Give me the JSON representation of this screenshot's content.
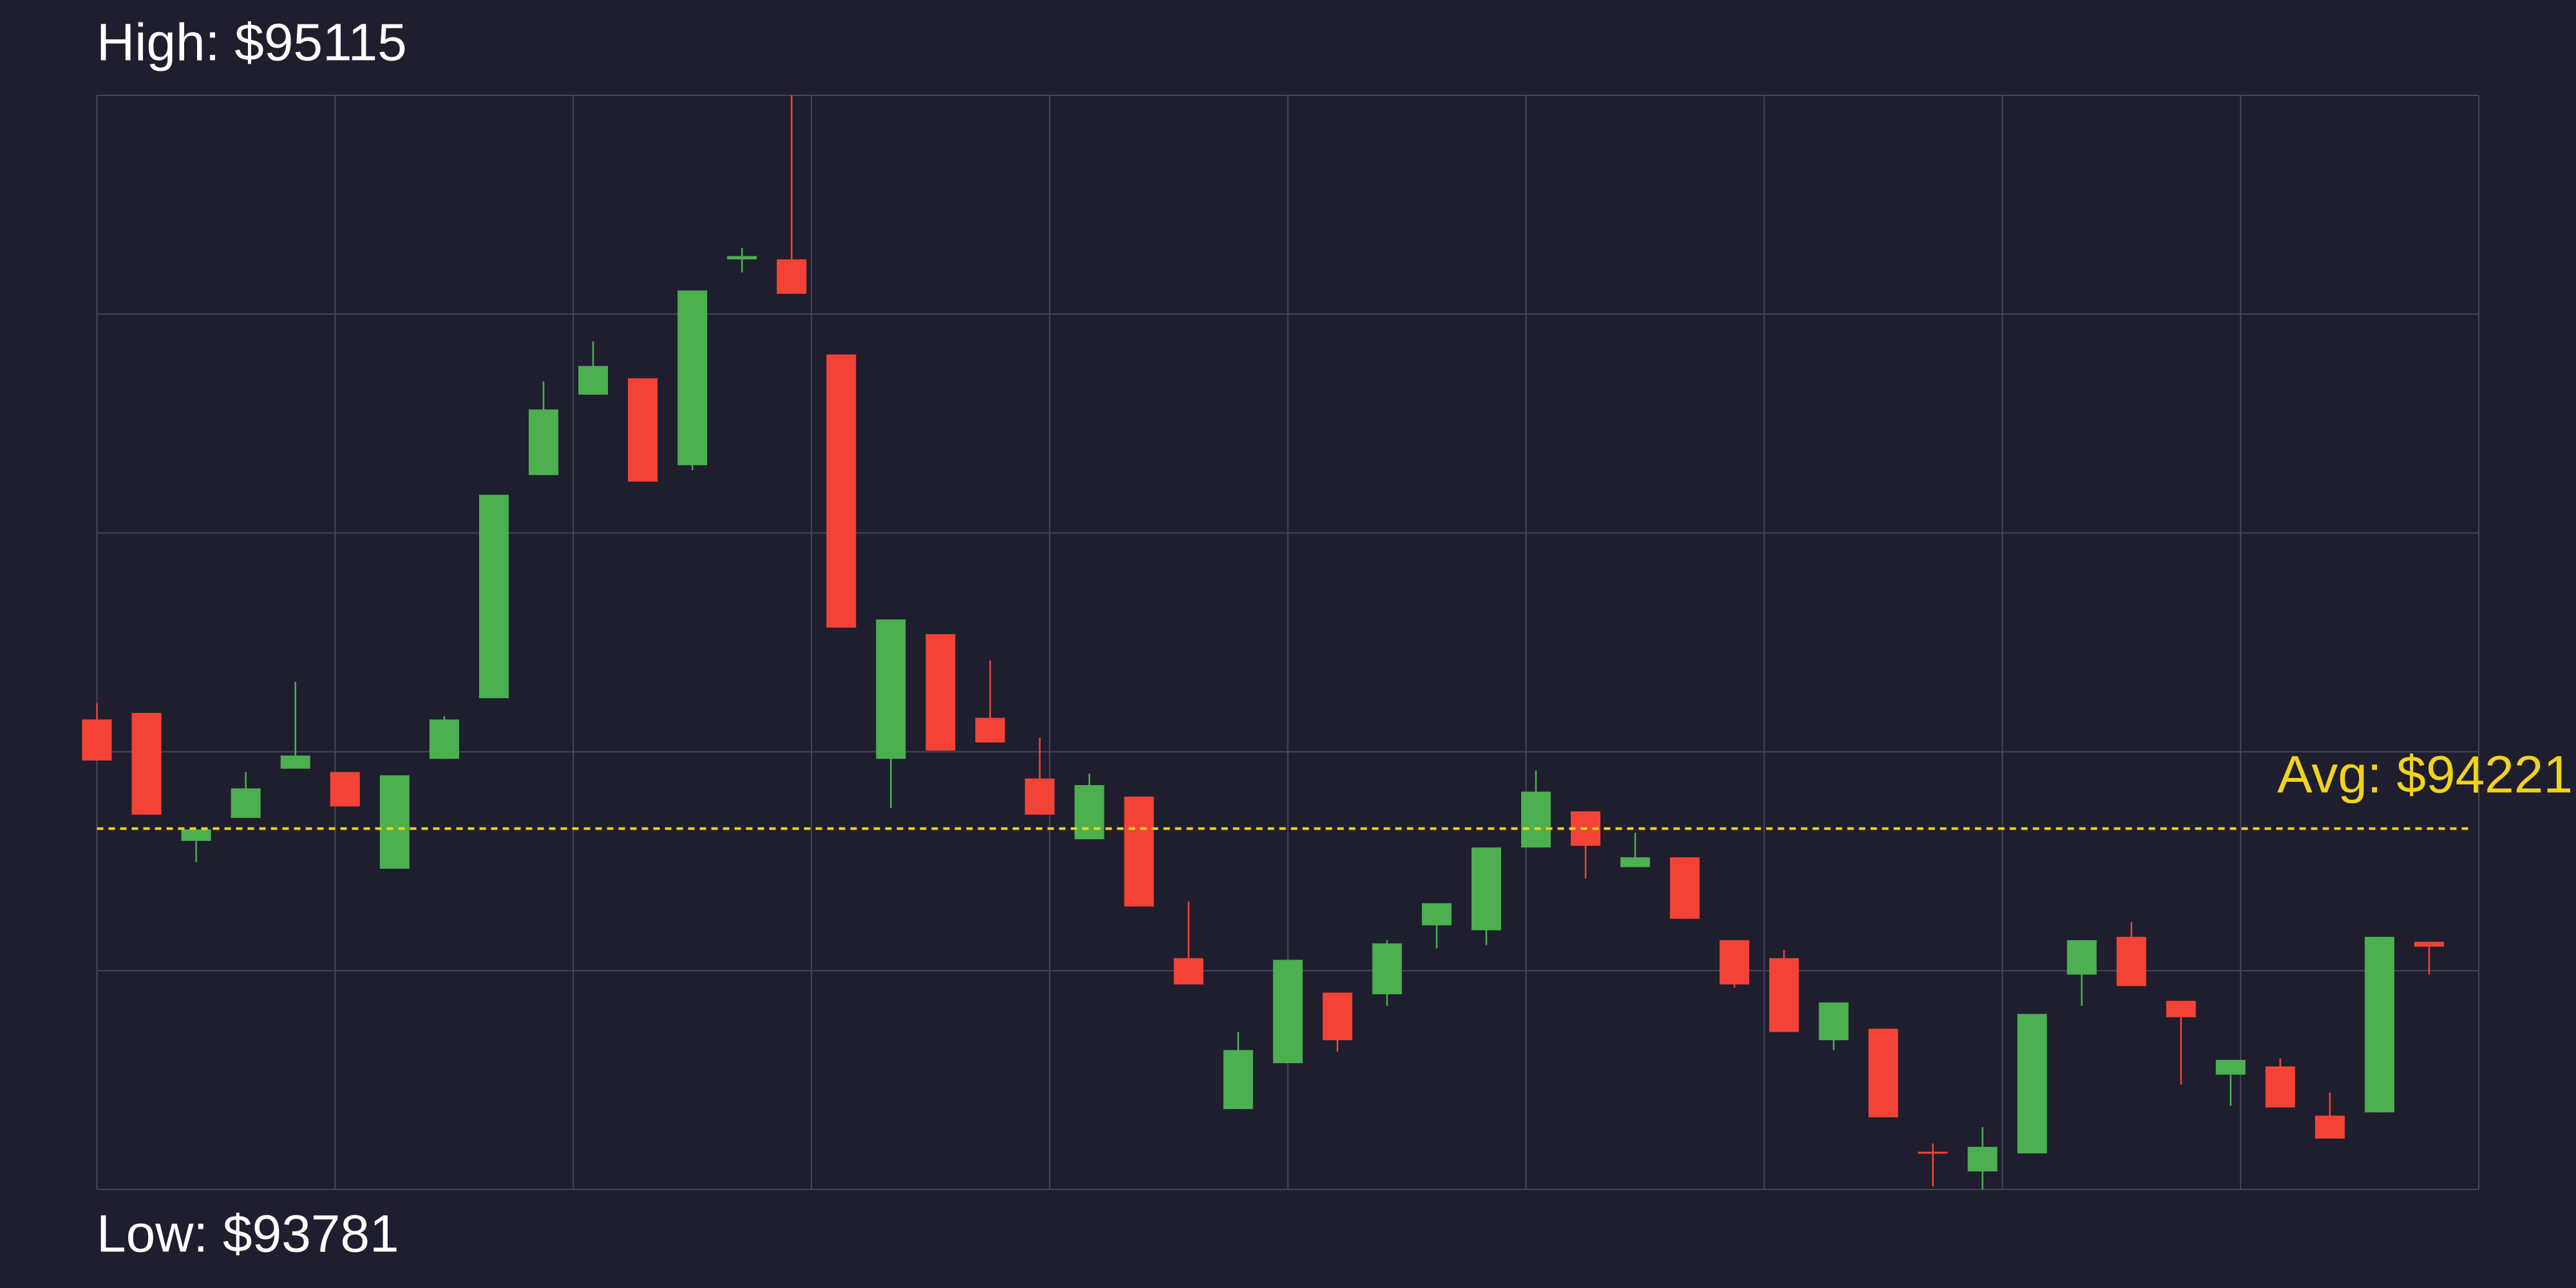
{
  "chart_data": {
    "type": "candlestick",
    "high_label": "High: $95115",
    "low_label": "Low: $93781",
    "avg_label": "Avg: $94221",
    "avg": 94221,
    "up_color": "#4caf50",
    "down_color": "#f44336",
    "avg_color": "#f2d31b",
    "grid": true,
    "xlim": [
      0,
      48
    ],
    "xticks": [
      0,
      4.8,
      9.6,
      14.4,
      19.2,
      24,
      28.8,
      33.6,
      38.4,
      43.2,
      48
    ],
    "ylim": [
      93781,
      95115
    ],
    "yticks": [
      93781,
      94047.8,
      94314.6,
      94581.4,
      94848.2,
      95115
    ],
    "x": [
      0,
      1,
      2,
      3,
      4,
      5,
      6,
      7,
      8,
      9,
      10,
      11,
      12,
      13,
      14,
      15,
      16,
      17,
      18,
      19,
      20,
      21,
      22,
      23,
      24,
      25,
      26,
      27,
      28,
      29,
      30,
      31,
      32,
      33,
      34,
      35,
      36,
      37,
      38,
      39,
      40,
      41,
      42,
      43,
      44,
      45,
      46,
      47
    ],
    "open": [
      94354,
      94362,
      94206,
      94234,
      94294,
      94290,
      94172,
      94306,
      94380,
      94652,
      94750,
      94770,
      94664,
      94915,
      94915,
      94799,
      94306,
      94458,
      94356,
      94282,
      94208,
      94260,
      94063,
      93879,
      93935,
      94021,
      94019,
      94103,
      94097,
      94198,
      94242,
      94174,
      94186,
      94085,
      94063,
      93963,
      93977,
      93827,
      93803,
      93825,
      94043,
      94089,
      94011,
      93921,
      93931,
      93871,
      93875,
      94083
    ],
    "high": [
      94374,
      94362,
      94220,
      94290,
      94400,
      94290,
      94286,
      94358,
      94628,
      94766,
      94815,
      94770,
      94877,
      94929,
      95115,
      94799,
      94476,
      94458,
      94426,
      94332,
      94288,
      94260,
      94132,
      93973,
      94061,
      94021,
      94085,
      94130,
      94198,
      94292,
      94242,
      94216,
      94186,
      94085,
      94073,
      94009,
      93977,
      93837,
      93857,
      93995,
      94085,
      94107,
      94011,
      93939,
      93941,
      93899,
      94089,
      94083
    ],
    "low": [
      94304,
      94238,
      94180,
      94234,
      94294,
      94248,
      94172,
      94306,
      94380,
      94652,
      94750,
      94644,
      94658,
      94899,
      94873,
      94466,
      94246,
      94316,
      94326,
      94238,
      94208,
      94126,
      94031,
      93879,
      93935,
      93949,
      94005,
      94075,
      94079,
      94198,
      94160,
      94174,
      94111,
      94027,
      93973,
      93951,
      93869,
      93785,
      93781,
      93825,
      94005,
      94029,
      93909,
      93883,
      93881,
      93843,
      93875,
      94043
    ],
    "close": [
      94304,
      94238,
      94220,
      94270,
      94310,
      94248,
      94286,
      94354,
      94628,
      94732,
      94785,
      94644,
      94877,
      94919,
      94873,
      94466,
      94476,
      94316,
      94326,
      94238,
      94274,
      94126,
      94031,
      93951,
      94061,
      93963,
      94081,
      94130,
      94198,
      94266,
      94200,
      94186,
      94111,
      94031,
      93973,
      94009,
      93869,
      93825,
      93833,
      93995,
      94085,
      94029,
      93991,
      93939,
      93881,
      93843,
      94089,
      94077
    ]
  }
}
